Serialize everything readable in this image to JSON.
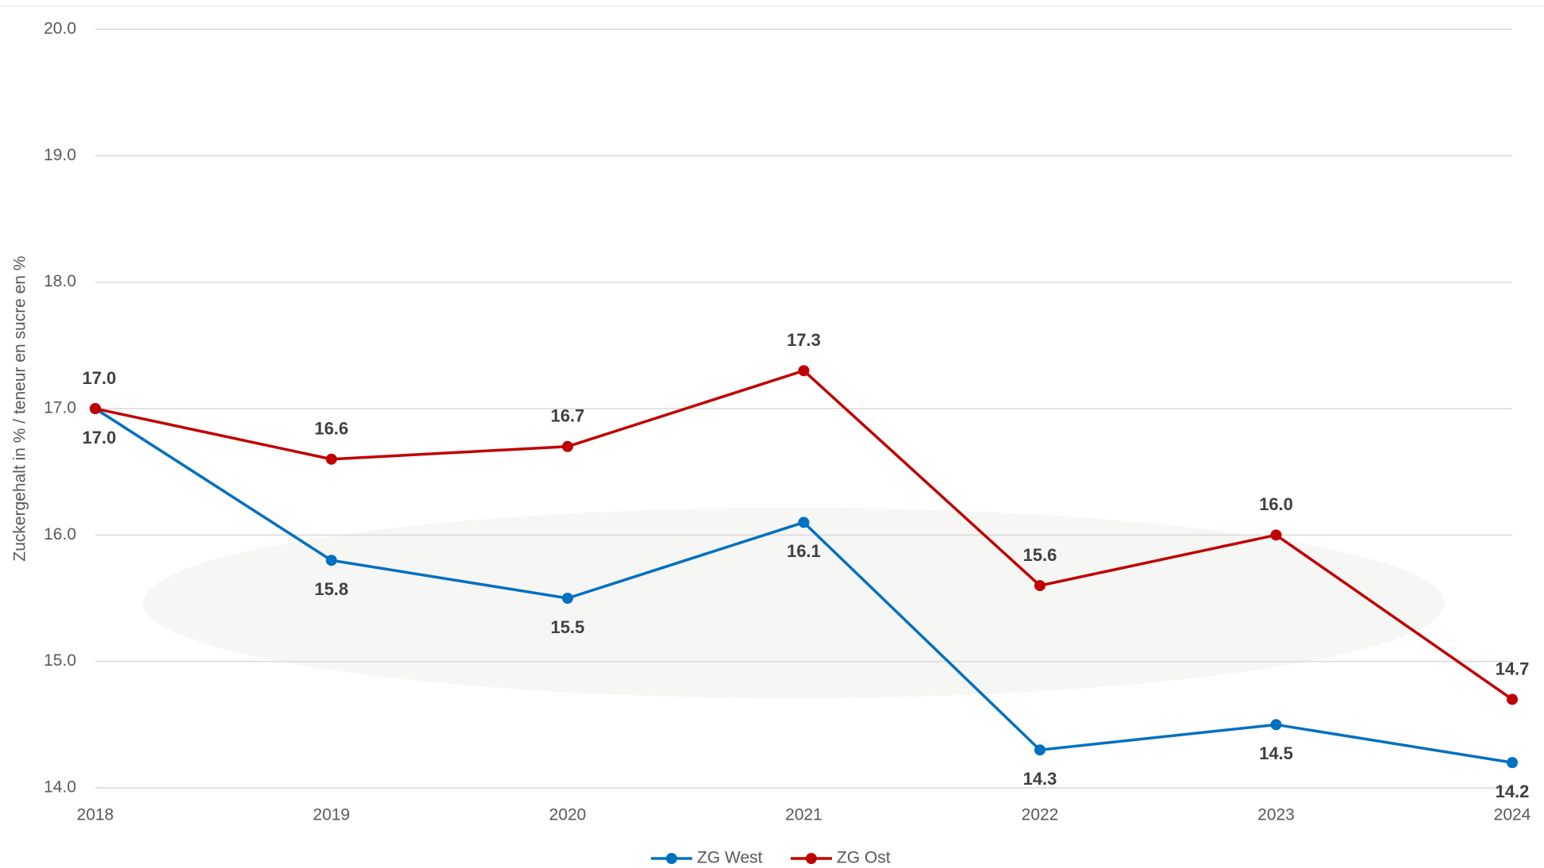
{
  "chart_data": {
    "type": "line",
    "y_label": "Zuckergehalt in % / teneur en sucre en %",
    "categories": [
      "2018",
      "2019",
      "2020",
      "2021",
      "2022",
      "2023",
      "2024"
    ],
    "series": [
      {
        "name": "ZG West",
        "color": "#0070c0",
        "values": [
          17.0,
          15.8,
          15.5,
          16.1,
          14.3,
          14.5,
          14.2
        ],
        "value_labels": [
          "17.0",
          "15.8",
          "15.5",
          "16.1",
          "14.3",
          "14.5",
          "14.2"
        ]
      },
      {
        "name": "ZG Ost",
        "color": "#c00000",
        "values": [
          17.0,
          16.6,
          16.7,
          17.3,
          15.6,
          16.0,
          14.7
        ],
        "value_labels": [
          "17.0",
          "16.6",
          "16.7",
          "17.3",
          "15.6",
          "16.0",
          "14.7"
        ]
      }
    ],
    "ylim": [
      14,
      20
    ],
    "yticks": [
      {
        "value": 14,
        "label": "14.0"
      },
      {
        "value": 15,
        "label": "15.0"
      },
      {
        "value": 16,
        "label": "16.0"
      },
      {
        "value": 17,
        "label": "17.0"
      },
      {
        "value": 18,
        "label": "18.0"
      },
      {
        "value": 19,
        "label": "19.0"
      },
      {
        "value": 20,
        "label": "20.0"
      }
    ],
    "grid": true,
    "legend": "bottom"
  }
}
